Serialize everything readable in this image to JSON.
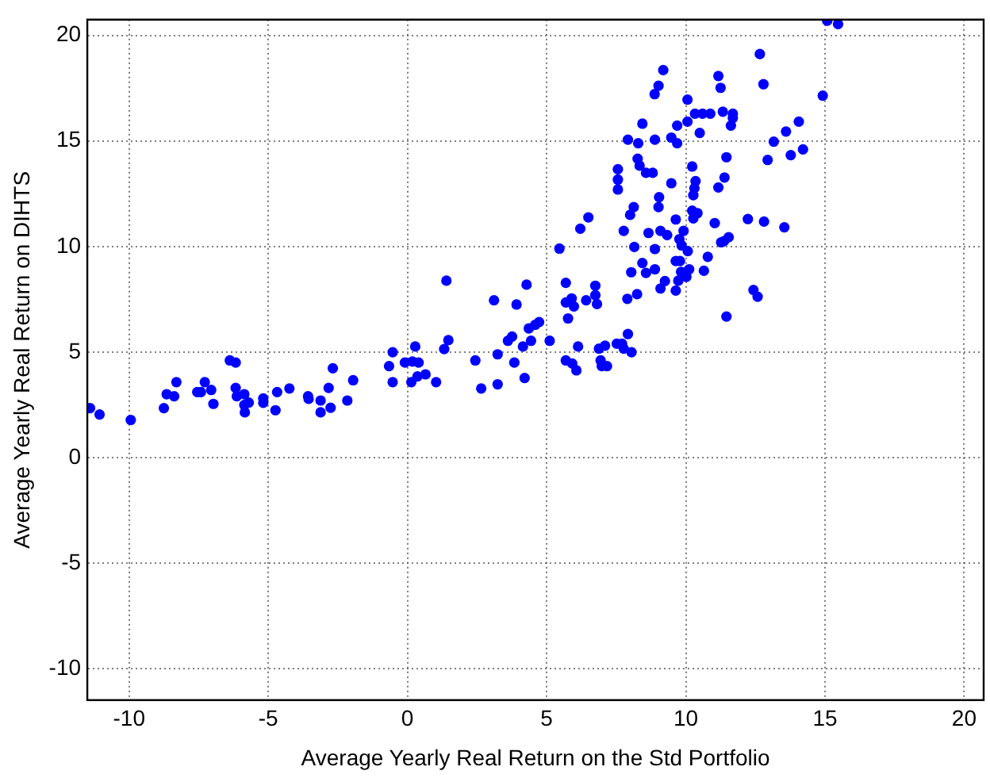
{
  "chart_data": {
    "type": "scatter",
    "xlabel": "Average Yearly Real Return on the Std Portfolio",
    "ylabel": "Average Yearly Real Return on DIHTS",
    "xlim": [
      -11.5,
      20.7
    ],
    "ylim": [
      -11.5,
      20.75
    ],
    "xticks": [
      -10,
      -5,
      0,
      5,
      10,
      15,
      20
    ],
    "yticks": [
      -10,
      -5,
      0,
      5,
      10,
      15,
      20
    ],
    "grid": true,
    "marker": "circle",
    "legend": false,
    "series": [
      {
        "color": "#0000ff",
        "x": [
          -11.4,
          -11.06,
          -9.94,
          -8.75,
          -8.65,
          -8.38,
          -8.3,
          -7.55,
          -7.42,
          -7.28,
          -7.05,
          -6.97,
          -6.38,
          -6.17,
          -6.17,
          -6.13,
          -5.86,
          -5.86,
          -5.84,
          -5.7,
          -5.18,
          -5.18,
          -4.74,
          -4.68,
          -4.24,
          -3.57,
          -3.55,
          -3.12,
          -3.12,
          -2.83,
          -2.76,
          -2.68,
          -2.16,
          -1.95,
          -0.53,
          -0.66,
          -0.53,
          -0.09,
          0.14,
          0.28,
          0.18,
          0.4,
          0.36,
          0.65,
          1.03,
          1.32,
          1.47,
          1.4,
          2.44,
          2.65,
          3.24,
          3.24,
          3.11,
          3.84,
          3.92,
          3.61,
          3.76,
          4.15,
          4.21,
          4.28,
          4.36,
          4.44,
          4.59,
          4.73,
          5.11,
          5.46,
          5.69,
          5.69,
          5.77,
          5.9,
          5.98,
          5.69,
          5.92,
          6.07,
          6.13,
          6.21,
          6.42,
          6.88,
          6.94,
          6.98,
          7.17,
          7.77,
          8.05,
          6.5,
          6.75,
          6.75,
          6.81,
          7.52,
          7.71,
          7.1,
          7.92,
          7.92,
          8.29,
          8.89,
          9.48,
          9.69,
          10.5,
          7.56,
          7.56,
          7.56,
          8.27,
          8.34,
          8.57,
          8.81,
          9.48,
          9.04,
          9.02,
          8.13,
          8.0,
          7.77,
          8.66,
          9.09,
          9.33,
          9.64,
          9.92,
          9.77,
          9.85,
          10.07,
          8.15,
          8.89,
          8.44,
          8.04,
          8.57,
          8.89,
          9.25,
          9.09,
          8.25,
          7.9,
          9.64,
          9.79,
          9.83,
          10.12,
          10.02,
          9.73,
          9.64,
          10.65,
          10.79,
          11.27,
          11.54,
          11.37,
          11.46,
          12.43,
          12.58,
          11.04,
          12.23,
          12.81,
          13.54,
          10.23,
          10.35,
          10.31,
          10.27,
          10.23,
          10.42,
          10.27,
          11.17,
          11.39,
          11.46,
          12.94,
          13.77,
          14.21,
          13.16,
          13.6,
          9.19,
          9.02,
          8.88,
          8.44,
          10.06,
          10.06,
          10.33,
          10.6,
          10.88,
          11.17,
          11.25,
          11.33,
          11.69,
          11.69,
          11.62,
          12.66,
          12.79,
          14.92,
          14.06,
          9.69,
          15.08,
          15.47
        ],
        "values": [
          2.34,
          2.04,
          1.78,
          2.34,
          3.0,
          2.9,
          3.57,
          3.1,
          3.1,
          3.57,
          3.2,
          2.54,
          4.6,
          4.5,
          3.3,
          2.9,
          3.0,
          2.49,
          2.14,
          2.6,
          2.8,
          2.59,
          2.24,
          3.1,
          3.27,
          2.9,
          2.78,
          2.7,
          2.14,
          3.3,
          2.36,
          4.23,
          2.7,
          3.66,
          4.99,
          4.33,
          3.57,
          4.5,
          3.57,
          5.26,
          4.55,
          4.5,
          3.84,
          3.94,
          3.57,
          5.14,
          5.56,
          8.38,
          4.6,
          3.27,
          4.89,
          3.47,
          7.45,
          4.5,
          7.25,
          5.53,
          5.73,
          5.26,
          3.77,
          8.19,
          6.12,
          5.53,
          6.29,
          6.42,
          5.53,
          9.9,
          8.28,
          7.35,
          6.59,
          7.54,
          7.16,
          4.6,
          4.45,
          4.13,
          5.26,
          10.84,
          7.45,
          5.16,
          4.6,
          4.33,
          4.33,
          5.16,
          4.99,
          11.38,
          8.14,
          7.69,
          7.27,
          5.39,
          5.39,
          5.3,
          5.85,
          15.06,
          14.89,
          15.06,
          15.16,
          14.89,
          15.38,
          13.66,
          13.17,
          12.7,
          14.16,
          13.83,
          13.49,
          13.49,
          13.0,
          12.34,
          11.87,
          11.87,
          11.5,
          10.74,
          10.64,
          10.74,
          10.54,
          11.28,
          10.74,
          10.35,
          10.05,
          9.78,
          9.98,
          9.88,
          9.22,
          8.78,
          8.75,
          8.92,
          8.36,
          8.01,
          7.74,
          7.52,
          9.31,
          9.31,
          8.8,
          8.92,
          8.56,
          8.38,
          7.91,
          8.85,
          9.51,
          10.2,
          10.44,
          10.25,
          6.68,
          7.94,
          7.62,
          11.11,
          11.3,
          11.18,
          10.91,
          13.79,
          13.1,
          12.76,
          12.43,
          11.7,
          11.58,
          11.33,
          12.8,
          13.27,
          14.23,
          14.1,
          14.33,
          14.6,
          14.97,
          15.45,
          18.36,
          17.62,
          17.22,
          15.82,
          16.96,
          15.92,
          16.29,
          16.29,
          16.29,
          18.08,
          17.52,
          16.39,
          16.29,
          16.09,
          15.73,
          19.12,
          17.69,
          17.15,
          15.92,
          15.73,
          20.7,
          20.54
        ]
      }
    ]
  }
}
